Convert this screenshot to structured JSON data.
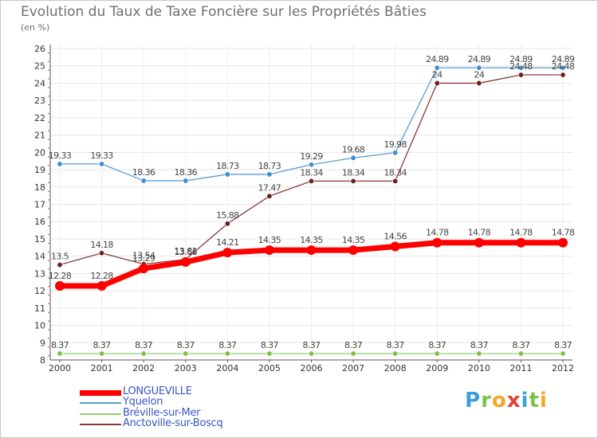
{
  "header": {
    "title": "Evolution du Taux de Taxe Foncière sur les Propriétés Bâties",
    "unit": "(en %)"
  },
  "logo": {
    "text": "Proxiti",
    "letters": [
      {
        "ch": "P",
        "color": "#3aa0d8"
      },
      {
        "ch": "r",
        "color": "#7cc24a"
      },
      {
        "ch": "o",
        "color": "#f5a623"
      },
      {
        "ch": "x",
        "color": "#e2403a"
      },
      {
        "ch": "i",
        "color": "#3aa0d8"
      },
      {
        "ch": "t",
        "color": "#7cc24a"
      },
      {
        "ch": "i",
        "color": "#f5a623"
      }
    ]
  },
  "chart_data": {
    "type": "line",
    "title": "Evolution du Taux de Taxe Foncière sur les Propriétés Bâties",
    "ylabel": "(en %)",
    "xlabel": "",
    "ylim": [
      8,
      26
    ],
    "yticks": [
      8,
      9,
      10,
      11,
      12,
      13,
      14,
      15,
      16,
      17,
      18,
      19,
      20,
      21,
      22,
      23,
      24,
      25,
      26
    ],
    "grid": true,
    "legend_position": "bottom-left",
    "categories": [
      "2000",
      "2001",
      "2002",
      "2003",
      "2004",
      "2005",
      "2006",
      "2007",
      "2008",
      "2009",
      "2010",
      "2011",
      "2012"
    ],
    "series": [
      {
        "name": "Yquelon",
        "color": "#5b9bd5",
        "dot_color": "#3d8fd4",
        "values": [
          19.33,
          19.33,
          18.36,
          18.36,
          18.73,
          18.73,
          19.29,
          19.68,
          19.98,
          24.89,
          24.89,
          24.89,
          24.89
        ],
        "labels": [
          "19.33",
          "19.33",
          "18.36",
          "18.36",
          "18.73",
          "18.73",
          "19.29",
          "19.68",
          "19.98",
          "24.89",
          "24.89",
          "24.89",
          "24.89"
        ]
      },
      {
        "name": "Anctoville-sur-Boscq",
        "color": "#8b3a3a",
        "dot_color": "#6b1f1f",
        "values": [
          13.5,
          14.18,
          13.54,
          13.81,
          15.88,
          17.47,
          18.34,
          18.34,
          18.34,
          24,
          24,
          24.48,
          24.48
        ],
        "labels": [
          "13.5",
          "14.18",
          "13.54",
          "13.81",
          "15.88",
          "17.47",
          "18.34",
          "18.34",
          "18.34",
          "24",
          "24",
          "24.48",
          "24.48"
        ]
      },
      {
        "name": "Bréville-sur-Mer",
        "color": "#8fd16a",
        "dot_color": "#7cc24a",
        "values": [
          8.37,
          8.37,
          8.37,
          8.37,
          8.37,
          8.37,
          8.37,
          8.37,
          8.37,
          8.37,
          8.37,
          8.37,
          8.37
        ],
        "labels": [
          "8.37",
          "8.37",
          "8.37",
          "8.37",
          "8.37",
          "8.37",
          "8.37",
          "8.37",
          "8.37",
          "8.37",
          "8.37",
          "8.37",
          "8.37"
        ]
      },
      {
        "name": "LONGUEVILLE",
        "color": "#ff0000",
        "dot_color": "#ff0000",
        "values": [
          12.28,
          12.28,
          13.29,
          13.66,
          14.21,
          14.35,
          14.35,
          14.35,
          14.56,
          14.78,
          14.78,
          14.78,
          14.78
        ],
        "labels": [
          "12.28",
          "12.28",
          "13.29",
          "13.66",
          "14.21",
          "14.35",
          "14.35",
          "14.35",
          "14.56",
          "14.78",
          "14.78",
          "14.78",
          "14.78"
        ]
      }
    ],
    "legend": [
      {
        "name": "LONGUEVILLE",
        "color": "#ff0000",
        "thick": true
      },
      {
        "name": "Yquelon",
        "color": "#5b9bd5",
        "thick": false
      },
      {
        "name": "Bréville-sur-Mer",
        "color": "#8fd16a",
        "thick": false
      },
      {
        "name": "Anctoville-sur-Boscq",
        "color": "#8b3a3a",
        "thick": false
      }
    ]
  }
}
